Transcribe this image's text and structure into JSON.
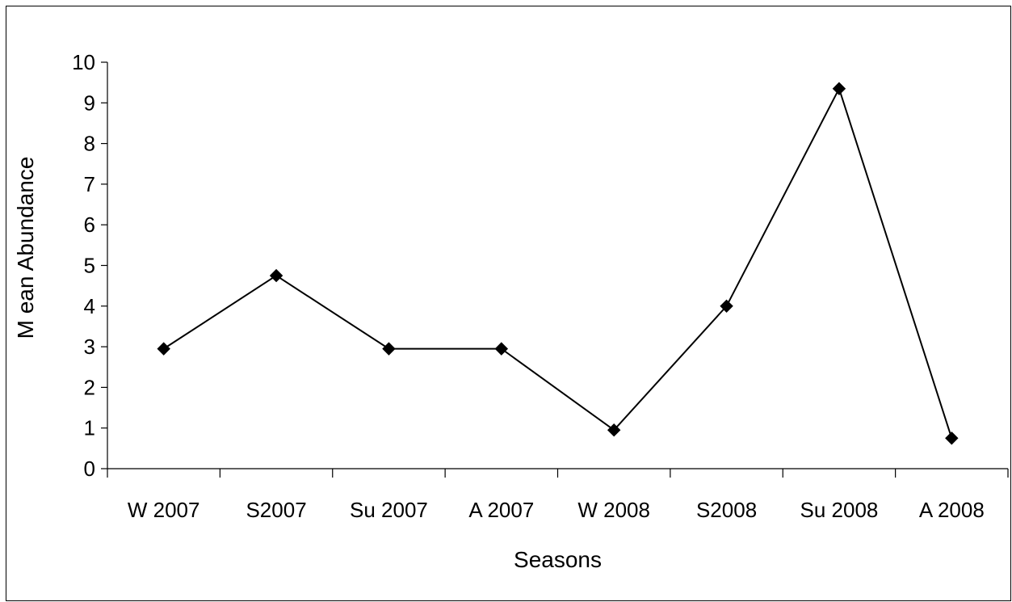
{
  "chart_data": {
    "type": "line",
    "categories": [
      "W2007",
      "S2007",
      "Su2007",
      "A2007",
      "W2008",
      "S2008",
      "Su2008",
      "A2008"
    ],
    "x_tick_labels": [
      "W 2007",
      "S2007",
      "Su 2007",
      "A 2007",
      "W 2008",
      "S2008",
      "Su 2008",
      "A 2008"
    ],
    "series": [
      {
        "values": [
          2.95,
          4.75,
          2.95,
          2.95,
          0.95,
          4.0,
          9.35,
          0.75
        ]
      }
    ],
    "xlabel": "Seasons",
    "ylabel": "M ean Abundance",
    "ylim": [
      0,
      10
    ],
    "yticks": [
      0,
      1,
      2,
      3,
      4,
      5,
      6,
      7,
      8,
      9,
      10
    ],
    "grid": false,
    "marker": "diamond",
    "colors": {
      "line": "#000000",
      "marker": "#000000"
    }
  }
}
